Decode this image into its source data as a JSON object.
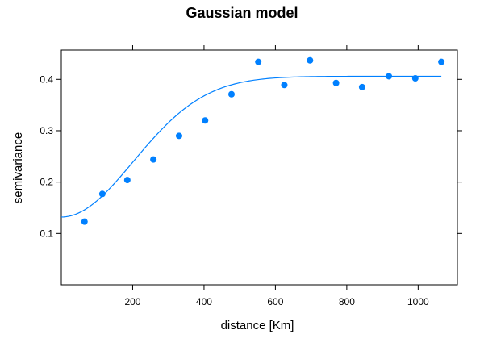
{
  "chart_data": {
    "type": "scatter",
    "title": "Gaussian model",
    "xlabel": "distance [Km]",
    "ylabel": "semivariance",
    "xlim": [
      0,
      1110
    ],
    "ylim": [
      0,
      0.457
    ],
    "x_ticks": [
      200,
      400,
      600,
      800,
      1000
    ],
    "y_ticks": [
      0.1,
      0.2,
      0.3,
      0.4
    ],
    "x_tick_labels": [
      "200",
      "400",
      "600",
      "800",
      "1000"
    ],
    "y_tick_labels": [
      "0.1",
      "0.2",
      "0.3",
      "0.4"
    ],
    "grid": false,
    "point_color": "#0080ff",
    "line_color": "#0080ff",
    "points": [
      {
        "x": 65,
        "y": 0.123
      },
      {
        "x": 115,
        "y": 0.177
      },
      {
        "x": 185,
        "y": 0.204
      },
      {
        "x": 258,
        "y": 0.244
      },
      {
        "x": 330,
        "y": 0.29
      },
      {
        "x": 403,
        "y": 0.32
      },
      {
        "x": 477,
        "y": 0.371
      },
      {
        "x": 552,
        "y": 0.434
      },
      {
        "x": 625,
        "y": 0.389
      },
      {
        "x": 697,
        "y": 0.437
      },
      {
        "x": 770,
        "y": 0.393
      },
      {
        "x": 843,
        "y": 0.385
      },
      {
        "x": 918,
        "y": 0.406
      },
      {
        "x": 992,
        "y": 0.402
      },
      {
        "x": 1065,
        "y": 0.434
      }
    ],
    "model": {
      "type": "Gaussian",
      "nugget": 0.132,
      "partial_sill": 0.274,
      "range": 285,
      "x_range": [
        0,
        1065
      ]
    }
  }
}
